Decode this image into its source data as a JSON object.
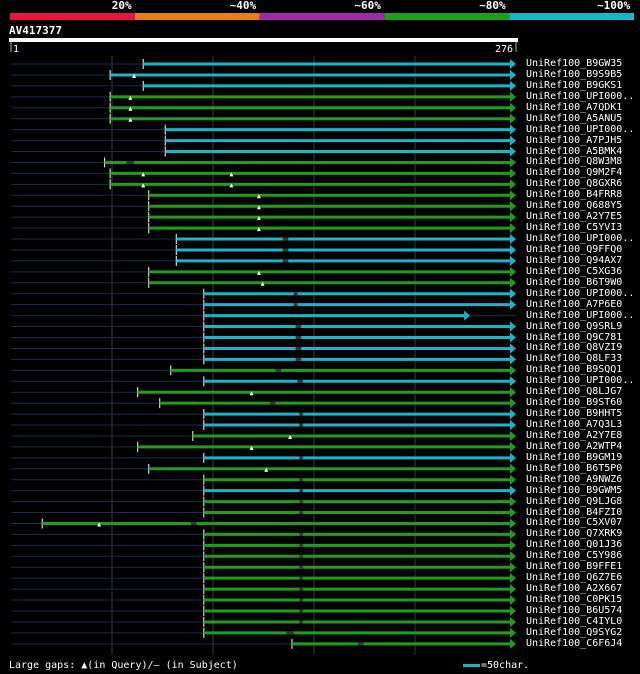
{
  "query_id": "AV417377",
  "query_length": 276,
  "ruler": {
    "start_label": "1",
    "end_label": "276"
  },
  "identity_scale": [
    {
      "label": "20%",
      "color": "#e8163a"
    },
    {
      "label": "~40%",
      "color": "#e87c1e"
    },
    {
      "label": "~60%",
      "color": "#9e2aa6"
    },
    {
      "label": "~80%",
      "color": "#1f9e1a"
    },
    {
      "label": "~100%",
      "color": "#17b6c8"
    }
  ],
  "legend": {
    "gaps_text": "Large gaps: ",
    "gap_query_marker": "▲",
    "in_query_text": "(in Query)/",
    "gap_subject_marker": "—",
    "in_subject_text": " (in Subject)",
    "scale_text": "=50char."
  },
  "chart_data": {
    "type": "alignment_overview",
    "x_range": [
      1,
      276
    ],
    "hits": [
      {
        "name": "UniRef100_B9GW35",
        "start": 73,
        "end": 276,
        "identity": "~100%",
        "gaps_query": [],
        "gaps_subject": []
      },
      {
        "name": "UniRef100_B9S9B5",
        "start": 55,
        "end": 276,
        "identity": "~100%",
        "gaps_query": [
          68
        ],
        "gaps_subject": []
      },
      {
        "name": "UniRef100_B9GKS1",
        "start": 73,
        "end": 276,
        "identity": "~100%",
        "gaps_query": [],
        "gaps_subject": []
      },
      {
        "name": "UniRef100_UPI000..",
        "start": 55,
        "end": 276,
        "identity": "~80%",
        "gaps_query": [
          66
        ],
        "gaps_subject": []
      },
      {
        "name": "UniRef100_A7QDK1",
        "start": 55,
        "end": 276,
        "identity": "~80%",
        "gaps_query": [
          66
        ],
        "gaps_subject": []
      },
      {
        "name": "UniRef100_A5ANU5",
        "start": 55,
        "end": 276,
        "identity": "~80%",
        "gaps_query": [
          66
        ],
        "gaps_subject": []
      },
      {
        "name": "UniRef100_UPI000..",
        "start": 85,
        "end": 276,
        "identity": "~100%",
        "gaps_query": [],
        "gaps_subject": []
      },
      {
        "name": "UniRef100_A7PJH5",
        "start": 85,
        "end": 276,
        "identity": "~100%",
        "gaps_query": [],
        "gaps_subject": []
      },
      {
        "name": "UniRef100_A5BMK4",
        "start": 85,
        "end": 276,
        "identity": "~100%",
        "gaps_query": [],
        "gaps_subject": []
      },
      {
        "name": "UniRef100_Q8W3M8",
        "start": 52,
        "end": 276,
        "identity": "~80%",
        "gaps_query": [],
        "gaps_subject": [
          64,
          68
        ]
      },
      {
        "name": "UniRef100_Q9M2F4",
        "start": 55,
        "end": 276,
        "identity": "~80%",
        "gaps_query": [
          73,
          121
        ],
        "gaps_subject": []
      },
      {
        "name": "UniRef100_Q8GXR6",
        "start": 55,
        "end": 276,
        "identity": "~80%",
        "gaps_query": [
          73,
          121
        ],
        "gaps_subject": []
      },
      {
        "name": "UniRef100_B4FRR8",
        "start": 76,
        "end": 276,
        "identity": "~80%",
        "gaps_query": [
          136
        ],
        "gaps_subject": []
      },
      {
        "name": "UniRef100_Q688Y5",
        "start": 76,
        "end": 276,
        "identity": "~80%",
        "gaps_query": [
          136
        ],
        "gaps_subject": []
      },
      {
        "name": "UniRef100_A2Y7E5",
        "start": 76,
        "end": 276,
        "identity": "~80%",
        "gaps_query": [
          136
        ],
        "gaps_subject": []
      },
      {
        "name": "UniRef100_C5YVI3",
        "start": 76,
        "end": 276,
        "identity": "~80%",
        "gaps_query": [
          136
        ],
        "gaps_subject": []
      },
      {
        "name": "UniRef100_UPI000..",
        "start": 91,
        "end": 276,
        "identity": "~100%",
        "gaps_query": [],
        "gaps_subject": [
          149,
          152
        ]
      },
      {
        "name": "UniRef100_Q9FFQ0",
        "start": 91,
        "end": 276,
        "identity": "~100%",
        "gaps_query": [],
        "gaps_subject": [
          149,
          152
        ]
      },
      {
        "name": "UniRef100_Q94AX7",
        "start": 91,
        "end": 276,
        "identity": "~100%",
        "gaps_query": [],
        "gaps_subject": [
          149,
          152
        ]
      },
      {
        "name": "UniRef100_C5XG36",
        "start": 76,
        "end": 276,
        "identity": "~80%",
        "gaps_query": [
          136
        ],
        "gaps_subject": []
      },
      {
        "name": "UniRef100_B6T9W0",
        "start": 76,
        "end": 276,
        "identity": "~80%",
        "gaps_query": [
          138
        ],
        "gaps_subject": []
      },
      {
        "name": "UniRef100_UPI000..",
        "start": 106,
        "end": 276,
        "identity": "~100%",
        "gaps_query": [],
        "gaps_subject": [
          155,
          157
        ]
      },
      {
        "name": "UniRef100_A7P6E0",
        "start": 106,
        "end": 276,
        "identity": "~100%",
        "gaps_query": [],
        "gaps_subject": [
          155,
          157
        ]
      },
      {
        "name": "UniRef100_UPI000..",
        "start": 106,
        "end": 251,
        "identity": "~100%",
        "gaps_query": [],
        "gaps_subject": []
      },
      {
        "name": "UniRef100_Q9SRL9",
        "start": 106,
        "end": 276,
        "identity": "~100%",
        "gaps_query": [],
        "gaps_subject": [
          156,
          159
        ]
      },
      {
        "name": "UniRef100_Q9C781",
        "start": 106,
        "end": 276,
        "identity": "~100%",
        "gaps_query": [],
        "gaps_subject": [
          156,
          159
        ]
      },
      {
        "name": "UniRef100_Q8VZI9",
        "start": 106,
        "end": 276,
        "identity": "~100%",
        "gaps_query": [],
        "gaps_subject": [
          156,
          159
        ]
      },
      {
        "name": "UniRef100_Q8LF33",
        "start": 106,
        "end": 276,
        "identity": "~100%",
        "gaps_query": [],
        "gaps_subject": [
          156,
          159
        ]
      },
      {
        "name": "UniRef100_B9SQQ1",
        "start": 88,
        "end": 276,
        "identity": "~80%",
        "gaps_query": [],
        "gaps_subject": [
          145,
          148
        ]
      },
      {
        "name": "UniRef100_UPI000..",
        "start": 106,
        "end": 276,
        "identity": "~100%",
        "gaps_query": [],
        "gaps_subject": [
          157,
          160
        ]
      },
      {
        "name": "UniRef100_Q8LJG7",
        "start": 70,
        "end": 276,
        "identity": "~80%",
        "gaps_query": [
          132
        ],
        "gaps_subject": []
      },
      {
        "name": "UniRef100_B9ST60",
        "start": 82,
        "end": 276,
        "identity": "~80%",
        "gaps_query": [],
        "gaps_subject": [
          142,
          145
        ]
      },
      {
        "name": "UniRef100_B9HHT5",
        "start": 106,
        "end": 276,
        "identity": "~100%",
        "gaps_query": [],
        "gaps_subject": [
          158,
          160
        ]
      },
      {
        "name": "UniRef100_A7Q3L3",
        "start": 106,
        "end": 276,
        "identity": "~100%",
        "gaps_query": [],
        "gaps_subject": [
          158,
          160
        ]
      },
      {
        "name": "UniRef100_A2Y7E8",
        "start": 100,
        "end": 276,
        "identity": "~80%",
        "gaps_query": [
          153
        ],
        "gaps_subject": []
      },
      {
        "name": "UniRef100_A2WTP4",
        "start": 70,
        "end": 276,
        "identity": "~80%",
        "gaps_query": [
          132
        ],
        "gaps_subject": []
      },
      {
        "name": "UniRef100_B9GM19",
        "start": 106,
        "end": 276,
        "identity": "~100%",
        "gaps_query": [],
        "gaps_subject": [
          158,
          160
        ]
      },
      {
        "name": "UniRef100_B6T5P0",
        "start": 76,
        "end": 276,
        "identity": "~80%",
        "gaps_query": [
          140
        ],
        "gaps_subject": []
      },
      {
        "name": "UniRef100_A9NWZ6",
        "start": 106,
        "end": 276,
        "identity": "~80%",
        "gaps_query": [],
        "gaps_subject": [
          158,
          160
        ]
      },
      {
        "name": "UniRef100_B9GWM5",
        "start": 106,
        "end": 276,
        "identity": "~100%",
        "gaps_query": [],
        "gaps_subject": [
          158,
          160
        ]
      },
      {
        "name": "UniRef100_Q9LJG8",
        "start": 106,
        "end": 276,
        "identity": "~80%",
        "gaps_query": [],
        "gaps_subject": [
          158,
          160
        ]
      },
      {
        "name": "UniRef100_B4FZI0",
        "start": 106,
        "end": 276,
        "identity": "~80%",
        "gaps_query": [],
        "gaps_subject": [
          158,
          160
        ]
      },
      {
        "name": "UniRef100_C5XV07",
        "start": 18,
        "end": 276,
        "identity": "~80%",
        "gaps_query": [
          49
        ],
        "gaps_subject": [
          99,
          102
        ]
      },
      {
        "name": "UniRef100_Q7XRK9",
        "start": 106,
        "end": 276,
        "identity": "~80%",
        "gaps_query": [],
        "gaps_subject": [
          158,
          160
        ]
      },
      {
        "name": "UniRef100_Q01J36",
        "start": 106,
        "end": 276,
        "identity": "~80%",
        "gaps_query": [],
        "gaps_subject": [
          158,
          160
        ]
      },
      {
        "name": "UniRef100_C5Y986",
        "start": 106,
        "end": 276,
        "identity": "~80%",
        "gaps_query": [],
        "gaps_subject": [
          158,
          160
        ]
      },
      {
        "name": "UniRef100_B9FFE1",
        "start": 106,
        "end": 276,
        "identity": "~80%",
        "gaps_query": [],
        "gaps_subject": [
          158,
          160
        ]
      },
      {
        "name": "UniRef100_Q6Z7E6",
        "start": 106,
        "end": 276,
        "identity": "~80%",
        "gaps_query": [],
        "gaps_subject": [
          158,
          160
        ]
      },
      {
        "name": "UniRef100_A2X667",
        "start": 106,
        "end": 276,
        "identity": "~80%",
        "gaps_query": [],
        "gaps_subject": [
          158,
          160
        ]
      },
      {
        "name": "UniRef100_C0PK15",
        "start": 106,
        "end": 276,
        "identity": "~80%",
        "gaps_query": [],
        "gaps_subject": [
          158,
          160
        ]
      },
      {
        "name": "UniRef100_B6U574",
        "start": 106,
        "end": 276,
        "identity": "~80%",
        "gaps_query": [],
        "gaps_subject": [
          158,
          160
        ]
      },
      {
        "name": "UniRef100_C4IYL0",
        "start": 106,
        "end": 276,
        "identity": "~80%",
        "gaps_query": [],
        "gaps_subject": [
          158,
          160
        ]
      },
      {
        "name": "UniRef100_Q9SYG2",
        "start": 106,
        "end": 276,
        "identity": "~80%",
        "gaps_query": [],
        "gaps_subject": [
          151,
          155
        ]
      },
      {
        "name": "UniRef100_C6F6J4",
        "start": 154,
        "end": 276,
        "identity": "~80%",
        "gaps_query": [],
        "gaps_subject": [
          190,
          193
        ]
      }
    ]
  }
}
